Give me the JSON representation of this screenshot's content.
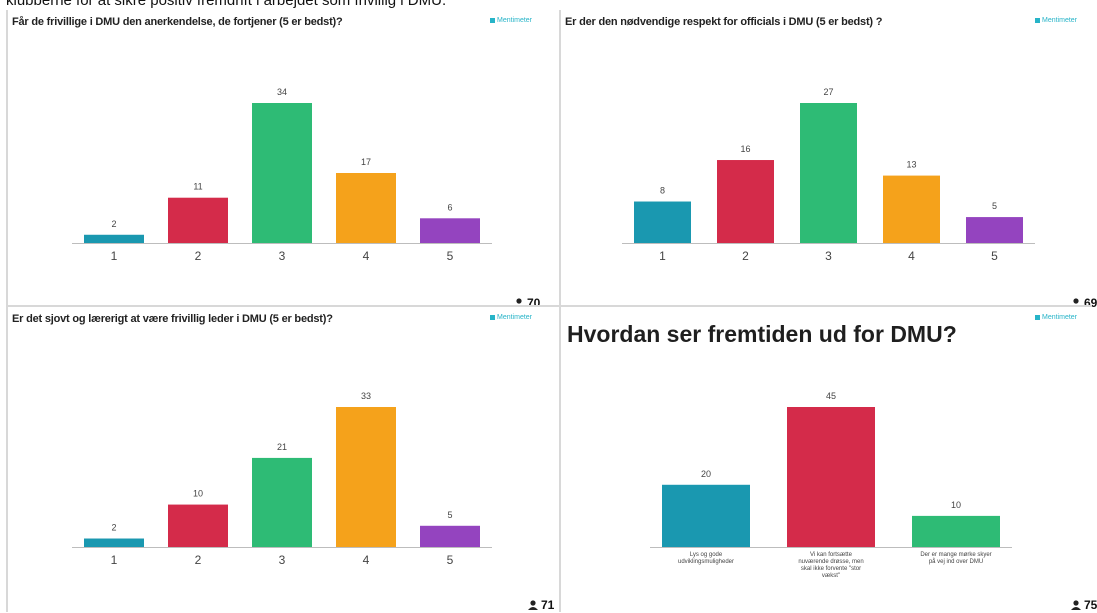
{
  "doc_text": "klubberne for at sikre positiv fremdrift i arbejdet som frivillig i DMU.",
  "brand_label": "Mentimeter",
  "colors": {
    "teal": "#1a98b0",
    "red": "#d42b4a",
    "green": "#2ebb75",
    "orange": "#f5a21b",
    "purple": "#9444bf"
  },
  "chart_data": [
    {
      "type": "bar",
      "title": "Får de frivillige i DMU den anerkendelse, de fortjener (5 er bedst)?",
      "categories": [
        "1",
        "2",
        "3",
        "4",
        "5"
      ],
      "values": [
        2,
        11,
        34,
        17,
        6
      ],
      "responses": "70"
    },
    {
      "type": "bar",
      "title": "Er der den nødvendige respekt for officials i DMU (5 er bedst) ?",
      "categories": [
        "1",
        "2",
        "3",
        "4",
        "5"
      ],
      "values": [
        8,
        16,
        27,
        13,
        5
      ],
      "responses": "69"
    },
    {
      "type": "bar",
      "title": "Er det sjovt og lærerigt at være frivillig leder i DMU (5 er bedst)?",
      "categories": [
        "1",
        "2",
        "3",
        "4",
        "5"
      ],
      "values": [
        2,
        10,
        21,
        33,
        5
      ],
      "responses": "71"
    },
    {
      "type": "bar",
      "title": "Hvordan ser fremtiden ud for DMU?",
      "categories": [
        "Lys og gode udviklingsmuligheder",
        "Vi kan fortsætte nuværende drøsse, men skal ikke forvente \"stor vækst\"",
        "Der er mange mørke skyer på vej ind over DMU"
      ],
      "values": [
        20,
        45,
        10
      ],
      "responses": "75"
    }
  ]
}
